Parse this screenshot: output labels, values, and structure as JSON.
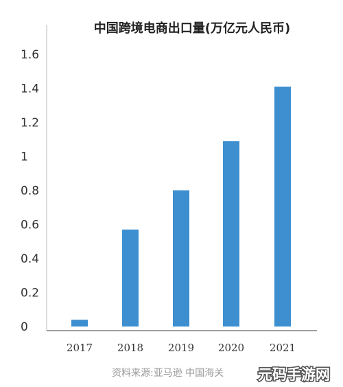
{
  "chart_data": {
    "type": "bar",
    "title": "中国跨境电商出口量(万亿元人民币)",
    "categories": [
      "2017",
      "2018",
      "2019",
      "2020",
      "2021"
    ],
    "values": [
      0.04,
      0.57,
      0.8,
      1.09,
      1.41
    ],
    "ylim": [
      0,
      1.6
    ],
    "yticks": [
      "0",
      "0.2",
      "0.4",
      "0.6",
      "0.8",
      "1",
      "1.2",
      "1.4",
      "1.6"
    ],
    "xlabel": "",
    "ylabel": "",
    "grid": false,
    "bar_color": "#3d8fd0"
  },
  "source_note": "资料来源:亚马逊 中国海关",
  "watermark": "元码手游网"
}
